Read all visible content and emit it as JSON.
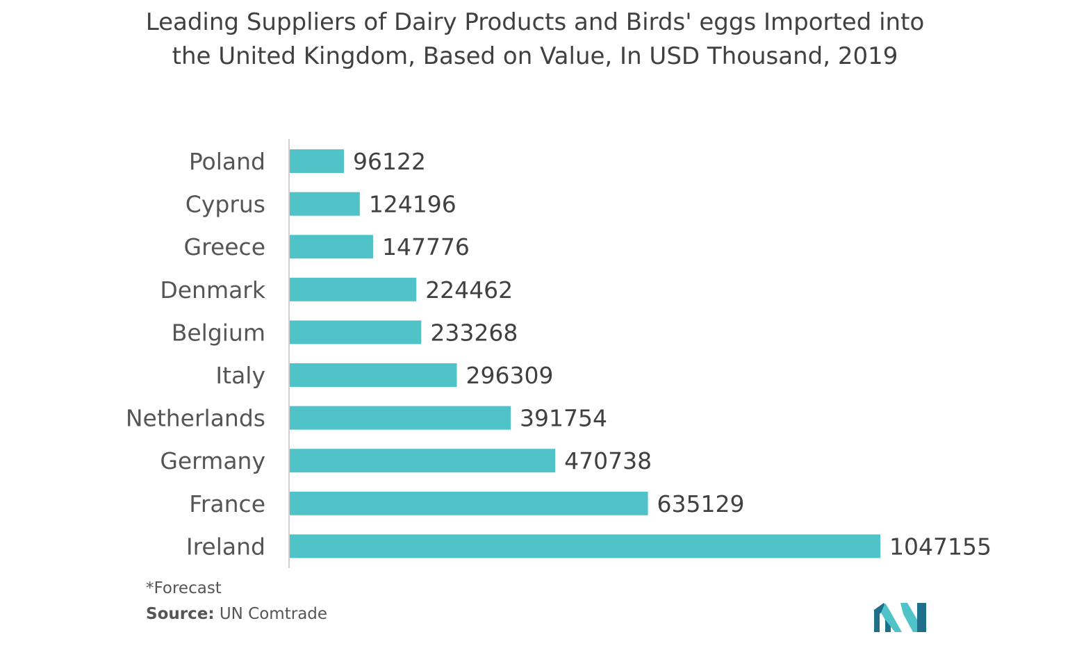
{
  "title_line1": "Leading Suppliers of Dairy Products and Birds' eggs Imported into",
  "title_line2": "the United Kingdom, Based on Value, In USD Thousand, 2019",
  "footnote": "*Forecast",
  "source_label": "Source:",
  "source_value": "UN Comtrade",
  "colors": {
    "bar": "#4fc3c8",
    "axis": "#d0d0d0",
    "text": "#404040",
    "logo_dark": "#1f6f8b",
    "logo_light": "#4fc3c8"
  },
  "chart_data": {
    "type": "bar",
    "orientation": "horizontal",
    "title": "Leading Suppliers of Dairy Products and Birds' eggs Imported into the United Kingdom, Based on Value, In USD Thousand, 2019",
    "categories": [
      "Poland",
      "Cyprus",
      "Greece",
      "Denmark",
      "Belgium",
      "Italy",
      "Netherlands",
      "Germany",
      "France",
      "Ireland"
    ],
    "values": [
      96122,
      124196,
      147776,
      224462,
      233268,
      296309,
      391754,
      470738,
      635129,
      1047155
    ],
    "xlim": [
      0,
      1047155
    ],
    "grid": false,
    "data_labels": true
  }
}
